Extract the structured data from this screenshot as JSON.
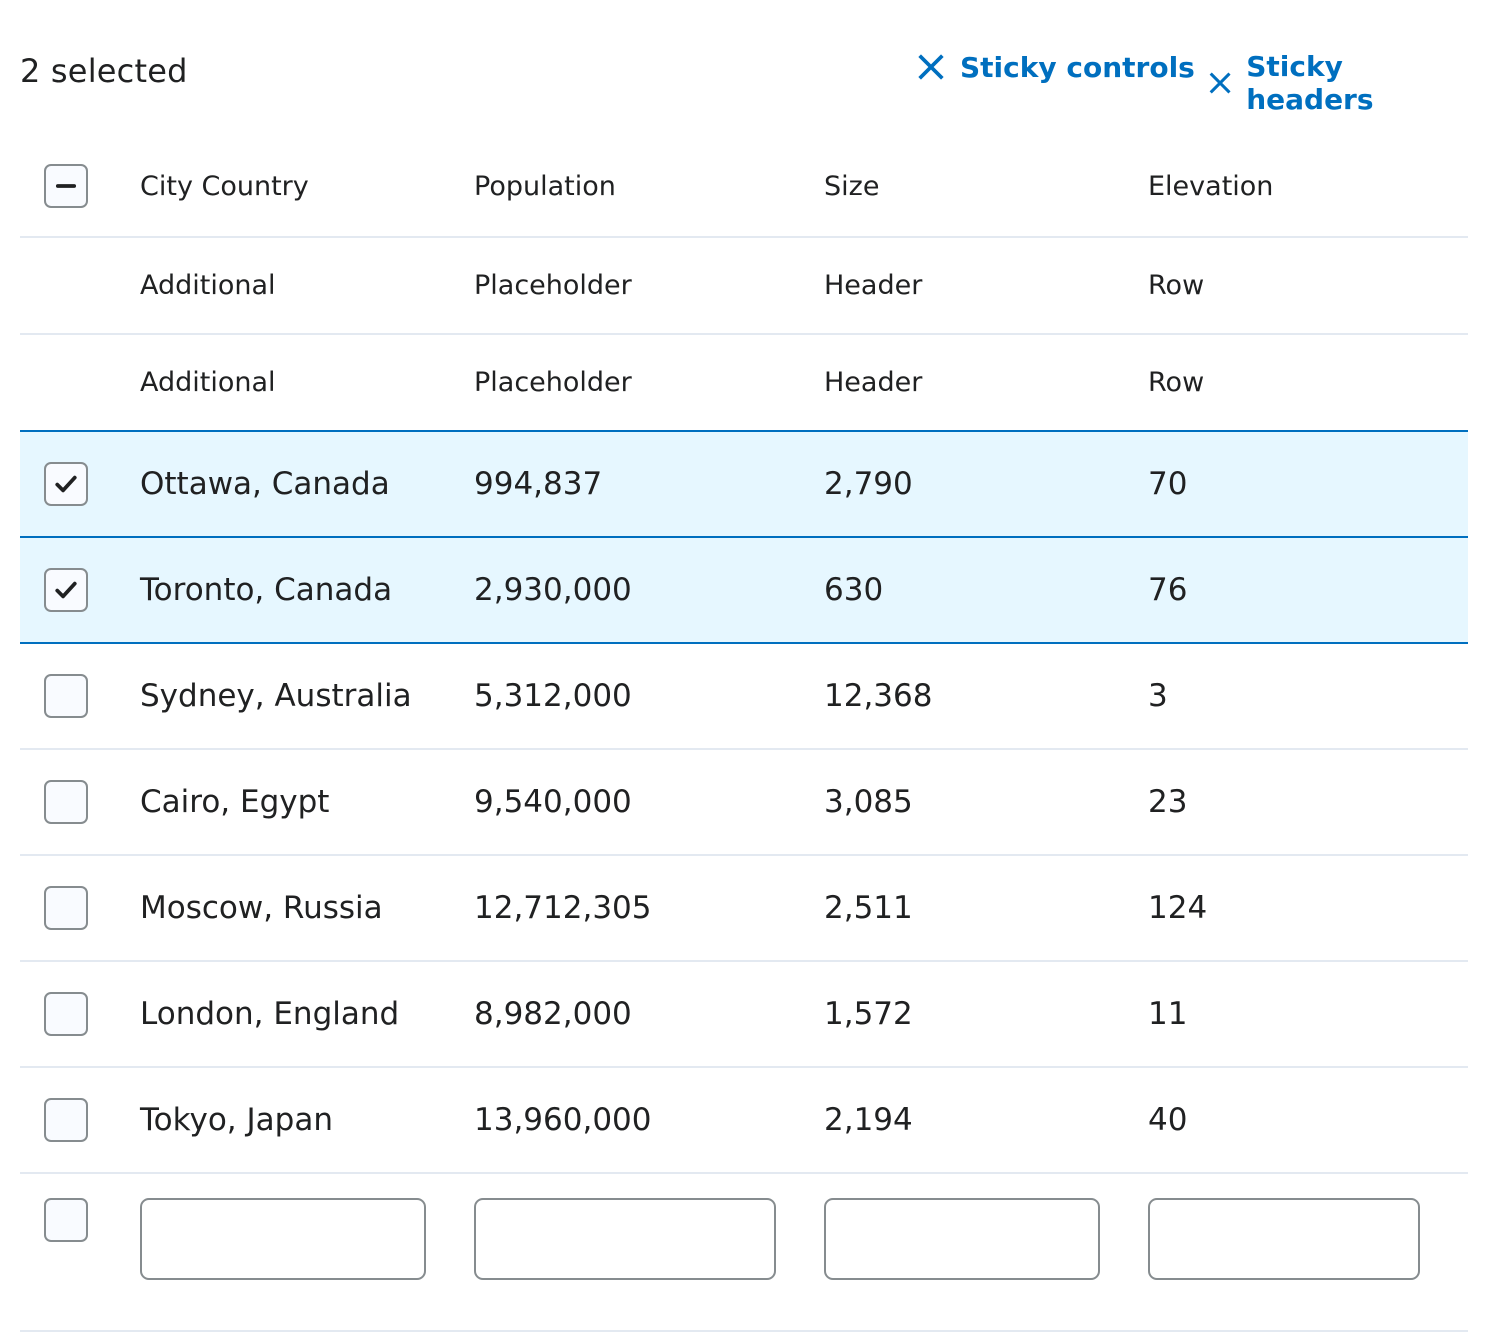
{
  "toolbar": {
    "selected_label": "2 selected",
    "sticky_controls_label": "Sticky controls",
    "sticky_headers_label": "Sticky headers"
  },
  "table": {
    "headers": [
      "City Country",
      "Population",
      "Size",
      "Elevation"
    ],
    "placeholder_rows": [
      [
        "Additional",
        "Placeholder",
        "Header",
        "Row"
      ],
      [
        "Additional",
        "Placeholder",
        "Header",
        "Row"
      ]
    ],
    "rows": [
      {
        "selected": true,
        "cells": [
          "Ottawa, Canada",
          "994,837",
          "2,790",
          "70"
        ]
      },
      {
        "selected": true,
        "cells": [
          "Toronto, Canada",
          "2,930,000",
          "630",
          "76"
        ]
      },
      {
        "selected": false,
        "cells": [
          "Sydney, Australia",
          "5,312,000",
          "12,368",
          "3"
        ]
      },
      {
        "selected": false,
        "cells": [
          "Cairo, Egypt",
          "9,540,000",
          "3,085",
          "23"
        ]
      },
      {
        "selected": false,
        "cells": [
          "Moscow, Russia",
          "12,712,305",
          "2,511",
          "124"
        ]
      },
      {
        "selected": false,
        "cells": [
          "London, England",
          "8,982,000",
          "1,572",
          "11"
        ]
      },
      {
        "selected": false,
        "cells": [
          "Tokyo, Japan",
          "13,960,000",
          "2,194",
          "40"
        ]
      }
    ],
    "input_row": {
      "selected": false,
      "values": [
        "",
        "",
        "",
        ""
      ]
    }
  },
  "colors": {
    "accent": "#006fbf",
    "selected_bg": "#e6f7ff",
    "divider": "#e3e9f1"
  }
}
